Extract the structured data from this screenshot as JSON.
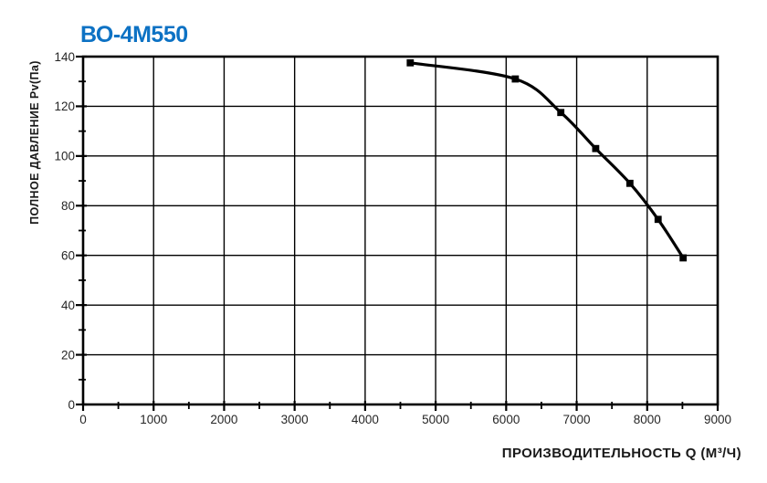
{
  "colors": {
    "title": "#0d72c4",
    "axis": "#000000",
    "grid": "#000000",
    "curve": "#000000",
    "marker": "#000000",
    "tick_label": "#262626",
    "background": "#ffffff"
  },
  "chart_data": {
    "type": "line",
    "title": "ВО-4М550",
    "xlabel": "ПРОИЗВОДИТЕЛЬНОСТЬ Q (М³/Ч)",
    "ylabel": "ПОЛНОЕ ДАВЛЕНИЕ Pv(Па)",
    "xlim": [
      0,
      9000
    ],
    "ylim": [
      0,
      140
    ],
    "x_ticks": [
      0,
      1000,
      2000,
      3000,
      4000,
      5000,
      6000,
      7000,
      8000,
      9000
    ],
    "y_ticks": [
      0,
      20,
      40,
      60,
      80,
      100,
      120,
      140
    ],
    "x_minor_step": 500,
    "y_minor_step": 10,
    "grid": "major-both",
    "legend_position": "none",
    "series": [
      {
        "name": "ВО-4М550",
        "marker": "square",
        "q": [
          4640,
          6130,
          6775,
          7270,
          7755,
          8155,
          8510
        ],
        "pv": [
          137.5,
          131,
          117.5,
          103,
          89,
          74.5,
          59
        ]
      }
    ]
  }
}
